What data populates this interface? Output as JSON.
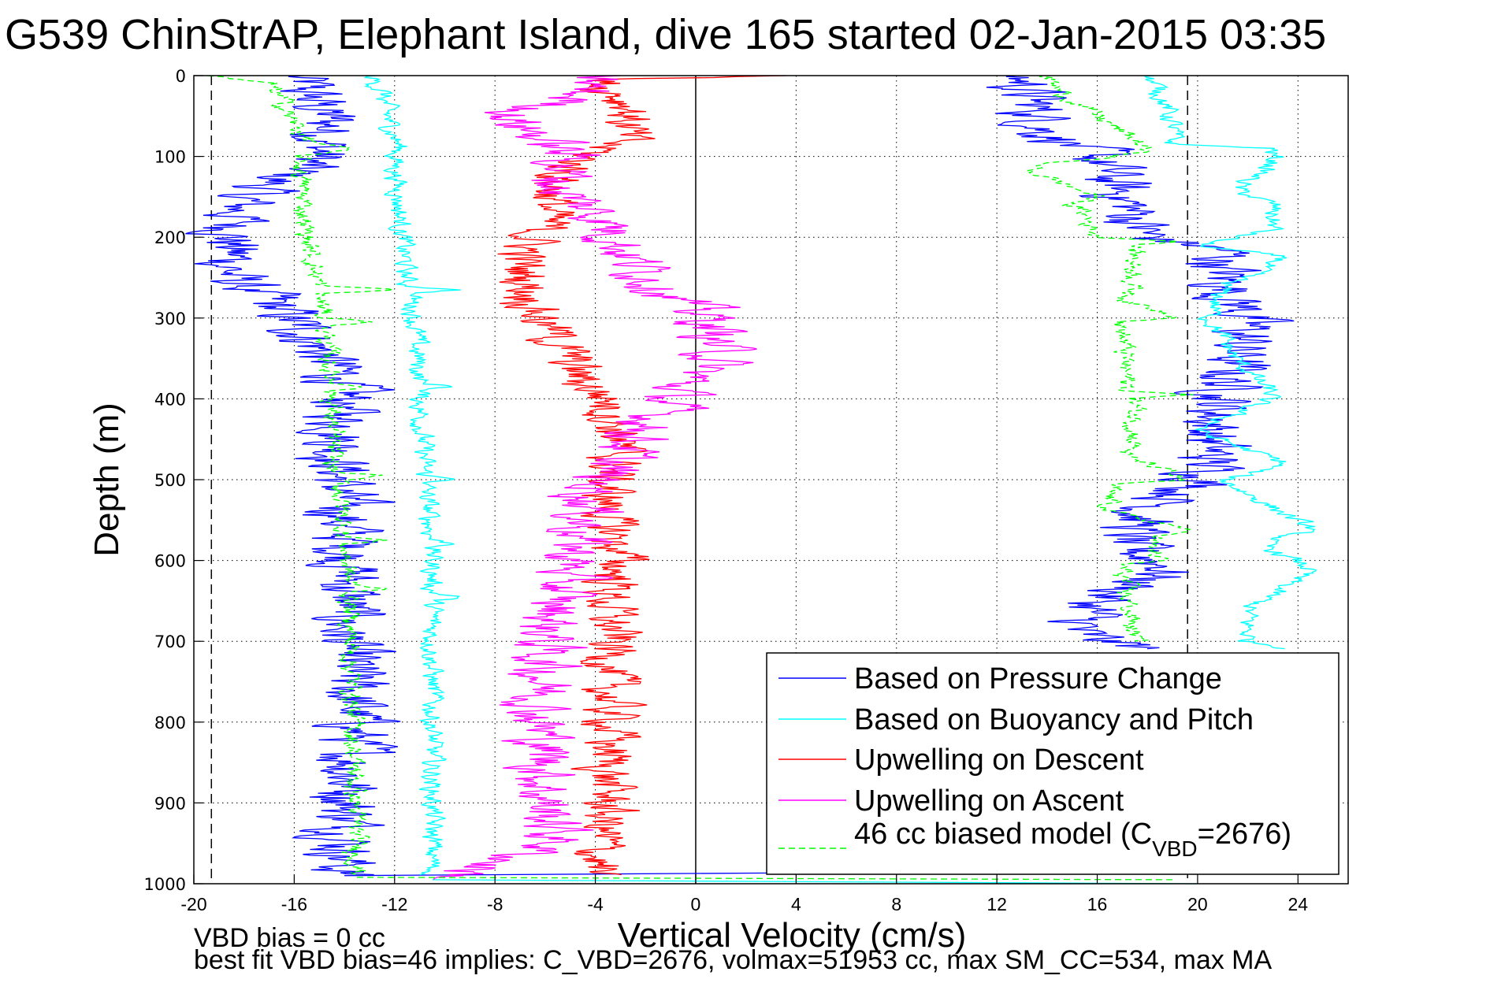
{
  "chart_data": {
    "type": "line",
    "title": "G539 ChinStrAP, Elephant Island, dive 165 started 02-Jan-2015 03:35",
    "xlabel": "Vertical Velocity (cm/s)",
    "ylabel": "Depth (m)",
    "xlim": [
      -20,
      26
    ],
    "ylim": [
      0,
      1000
    ],
    "y_reversed": true,
    "grid": true,
    "x_ticks": [
      -20,
      -16,
      -12,
      -8,
      -4,
      0,
      4,
      8,
      12,
      16,
      20,
      24
    ],
    "x_tick_labels": [
      "-20",
      "-16",
      "-12",
      "-8",
      "-4",
      "0",
      "4",
      "8",
      "12",
      "16",
      "20",
      "24"
    ],
    "y_ticks": [
      0,
      100,
      200,
      300,
      400,
      500,
      600,
      700,
      800,
      900,
      1000
    ],
    "y_tick_labels": [
      "0",
      "100",
      "200",
      "300",
      "400",
      "500",
      "600",
      "700",
      "800",
      "900",
      "1000"
    ],
    "reference_lines": [
      {
        "type": "vertical",
        "x": 0,
        "style": "solid",
        "color": "#000000"
      },
      {
        "type": "vertical",
        "x": -19.3,
        "style": "dashed",
        "color": "#000000"
      },
      {
        "type": "vertical",
        "x": 19.6,
        "style": "dashed",
        "color": "#000000"
      }
    ],
    "legend_position": "bottom-right",
    "series": [
      {
        "name": "Based on Pressure Change",
        "legend": "Based on Pressure Change",
        "color": "#0000ff",
        "style": "solid",
        "noise": 1.2,
        "segments": [
          {
            "depth": [
              0,
              20,
              60,
              100,
              150,
              200,
              250,
              280,
              320,
              380,
              400,
              500,
              600,
              700,
              800,
              900,
              990
            ],
            "x": [
              -16,
              -15.5,
              -14.5,
              -15,
              -18,
              -18.5,
              -18.5,
              -17,
              -15.5,
              -14,
              -14,
              -14.2,
              -13.8,
              -14,
              -13.5,
              -13.8,
              -14
            ]
          },
          {
            "depth": [
              990,
              985
            ],
            "x": [
              -14,
              12
            ]
          },
          {
            "depth": [
              0,
              40,
              70,
              100,
              150,
              200,
              215,
              250,
              300,
              350,
              400,
              450,
              500,
              540,
              580,
              610,
              650,
              690,
              710
            ],
            "x": [
              13,
              13.5,
              14,
              16,
              17,
              18,
              21,
              21,
              22,
              21.5,
              21,
              20.5,
              20.5,
              18,
              17,
              19,
              16,
              15,
              18
            ]
          }
        ]
      },
      {
        "name": "Based on Buoyancy and Pitch",
        "legend": "Based on Buoyancy and Pitch",
        "color": "#00ffff",
        "style": "solid",
        "noise": 0.35,
        "segments": [
          {
            "depth": [
              0,
              20,
              60,
              90,
              100,
              260,
              265,
              270,
              380,
              385,
              390,
              495,
              500,
              505,
              575,
              580,
              585,
              640,
              645,
              650,
              990
            ],
            "x": [
              -13,
              -12.5,
              -12.2,
              -11.8,
              -12,
              -11.5,
              -9.5,
              -11.3,
              -11,
              -9.6,
              -11,
              -10.8,
              -9.5,
              -10.8,
              -10.5,
              -9.5,
              -10.5,
              -10.5,
              -9.3,
              -10.5,
              -10.5
            ]
          },
          {
            "depth": [
              995,
              1000
            ],
            "x": [
              -10.5,
              20
            ]
          },
          {
            "depth": [
              0,
              20,
              60,
              85,
              90,
              110,
              140,
              160,
              190,
              210,
              225,
              260,
              300,
              350,
              395,
              440,
              480,
              500,
              560,
              580,
              610,
              660,
              700,
              710
            ],
            "x": [
              18,
              18.5,
              19,
              19,
              23,
              23,
              21.5,
              23,
              23,
              20,
              23.5,
              21,
              20.5,
              21.5,
              23,
              20,
              23.5,
              21,
              24.5,
              22.5,
              24.5,
              22,
              22,
              24
            ]
          }
        ]
      },
      {
        "name": "Upwelling on Descent",
        "legend": "Upwelling on Descent",
        "color": "#ff0000",
        "style": "solid",
        "noise": 0.9,
        "segments": [
          {
            "depth": [
              0,
              5,
              15,
              40,
              80,
              100,
              130,
              180,
              230,
              280,
              330,
              380,
              400,
              450,
              500,
              550,
              600,
              650,
              700,
              750,
              800,
              850,
              900,
              950,
              990
            ],
            "x": [
              4,
              -4,
              -3.5,
              -2.5,
              -3,
              -4.5,
              -5.5,
              -6,
              -7,
              -6.5,
              -5.5,
              -4.5,
              -3.5,
              -3,
              -3.5,
              -3.5,
              -3,
              -3.5,
              -3.3,
              -3.5,
              -3.3,
              -3.5,
              -3.5,
              -3.8,
              -4
            ]
          }
        ]
      },
      {
        "name": "Upwelling on Ascent",
        "legend": "Upwelling on Ascent",
        "color": "#ff00ff",
        "style": "solid",
        "noise": 1.1,
        "segments": [
          {
            "depth": [
              0,
              30,
              50,
              80,
              100,
              140,
              180,
              230,
              270,
              300,
              350,
              380,
              420,
              470,
              500,
              560,
              600,
              650,
              700,
              750,
              800,
              850,
              900,
              950,
              985,
              995
            ],
            "x": [
              -4,
              -5,
              -7.5,
              -6,
              -5,
              -5.5,
              -3.5,
              -2.5,
              -1,
              0.5,
              1,
              -0.5,
              -1.5,
              -3,
              -4,
              -4.5,
              -5,
              -5.5,
              -6,
              -6,
              -6.2,
              -6,
              -6,
              -5.5,
              -9,
              -10
            ]
          }
        ]
      },
      {
        "name": "46 cc biased model (C_VBD=2676)",
        "legend": "46 cc biased model (C",
        "legend_sub": "VBD",
        "legend_tail": "=2676)",
        "color": "#00ff00",
        "style": "dashed",
        "noise": 0.35,
        "segments": [
          {
            "depth": [
              0,
              10,
              30,
              50,
              80,
              90,
              100,
              200,
              260,
              265,
              270,
              300,
              305,
              310,
              380,
              385,
              390,
              490,
              495,
              500,
              570,
              575,
              580,
              630,
              635,
              640,
              990
            ],
            "x": [
              -19.5,
              -17,
              -16.5,
              -16.2,
              -15.5,
              -14,
              -15.8,
              -15.5,
              -15,
              -12,
              -15,
              -14.8,
              -12.5,
              -14.8,
              -14.5,
              -12.8,
              -14.5,
              -14.5,
              -12.5,
              -14.2,
              -14,
              -12.5,
              -14,
              -13.8,
              -12.3,
              -13.8,
              -13.5
            ]
          },
          {
            "depth": [
              992,
              995
            ],
            "x": [
              -13.5,
              19
            ]
          },
          {
            "depth": [
              0,
              20,
              40,
              60,
              90,
              100,
              110,
              120,
              150,
              160,
              170,
              200,
              205,
              210,
              250,
              280,
              300,
              305,
              310,
              390,
              395,
              400,
              460,
              470,
              480,
              500,
              505,
              510,
              540,
              560,
              580,
              600,
              605,
              610,
              700
            ],
            "x": [
              14,
              14.5,
              15.5,
              16.5,
              18,
              17,
              13.5,
              13.5,
              16,
              15,
              15.5,
              16,
              19.5,
              17.5,
              17.5,
              17.2,
              19.5,
              17,
              17,
              17.2,
              19.5,
              17.5,
              17.5,
              17,
              18,
              19.5,
              16.5,
              16.5,
              16.5,
              19.5,
              18,
              18.5,
              17,
              17,
              17.5
            ]
          }
        ]
      }
    ],
    "annotations": [
      "VBD bias = 0 cc",
      "best fit VBD bias=46 implies: C_VBD=2676, volmax=51953 cc, max SM_CC=534, max MA"
    ]
  }
}
